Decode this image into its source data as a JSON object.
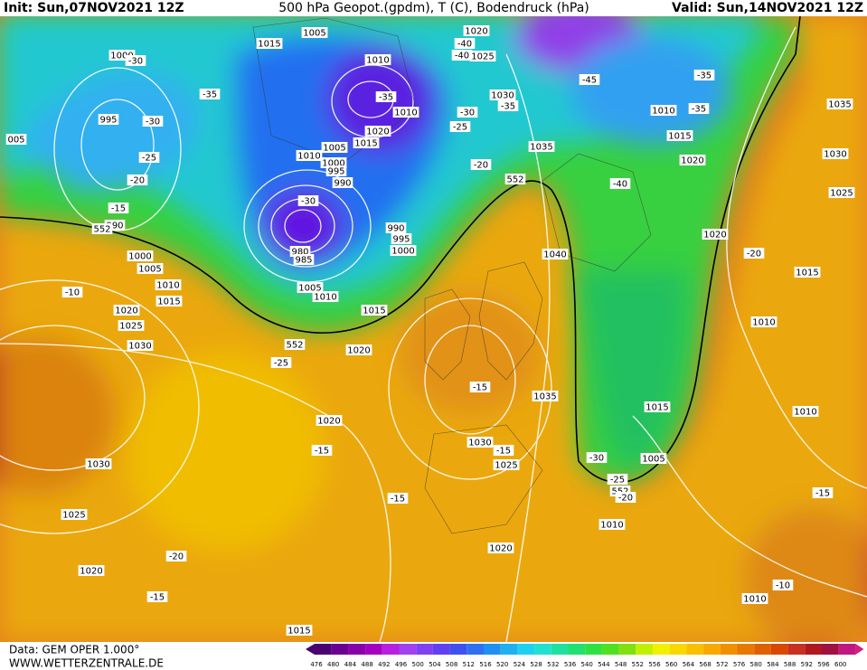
{
  "header": {
    "init": "Init: Sun,07NOV2021 12Z",
    "title": "500 hPa Geopot.(gpdm), T (C), Bodendruck (hPa)",
    "valid": "Valid: Sun,14NOV2021 12Z"
  },
  "footer": {
    "data": "Data: GEM OPER 1.000°",
    "site": "WWW.WETTERZENTRALE.DE"
  },
  "colorbar": {
    "labels": [
      476,
      480,
      484,
      488,
      492,
      496,
      500,
      504,
      508,
      512,
      516,
      520,
      524,
      528,
      532,
      536,
      540,
      544,
      548,
      552,
      556,
      560,
      564,
      568,
      572,
      576,
      580,
      584,
      588,
      592,
      596,
      600
    ]
  },
  "map": {
    "labels": [
      "1005",
      "1015",
      "1020",
      "-40",
      "-40",
      "1025",
      "1000",
      "-30",
      "1010",
      "-35",
      "-35",
      "1030",
      "-35",
      "-45",
      "-35",
      "1035",
      "995",
      "-30",
      "1010",
      "-30",
      "1010",
      "-35",
      "005",
      "1020",
      "1015",
      "-25",
      "1015",
      "1035",
      "1010",
      "1005",
      "-25",
      "1000",
      "995",
      "1020",
      "1030",
      "-20",
      "990",
      "-20",
      "552",
      "-40",
      "1025",
      "-30",
      "-15",
      "990",
      "552",
      "990",
      "995",
      "1000",
      "980",
      "985",
      "1020",
      "-20",
      "1000",
      "1005",
      "1040",
      "1015",
      "1010",
      "-10",
      "1005",
      "1010",
      "1015",
      "1020",
      "1015",
      "1025",
      "1010",
      "1030",
      "552",
      "1020",
      "-25",
      "-15",
      "1035",
      "1015",
      "1010",
      "1020",
      "1030",
      "-15",
      "-15",
      "-30",
      "1005",
      "1025",
      "1030",
      "-25",
      "552",
      "-20",
      "-15",
      "-15",
      "1025",
      "1010",
      "1020",
      "-20",
      "1020",
      "-10",
      "-15",
      "1010",
      "1015"
    ]
  }
}
